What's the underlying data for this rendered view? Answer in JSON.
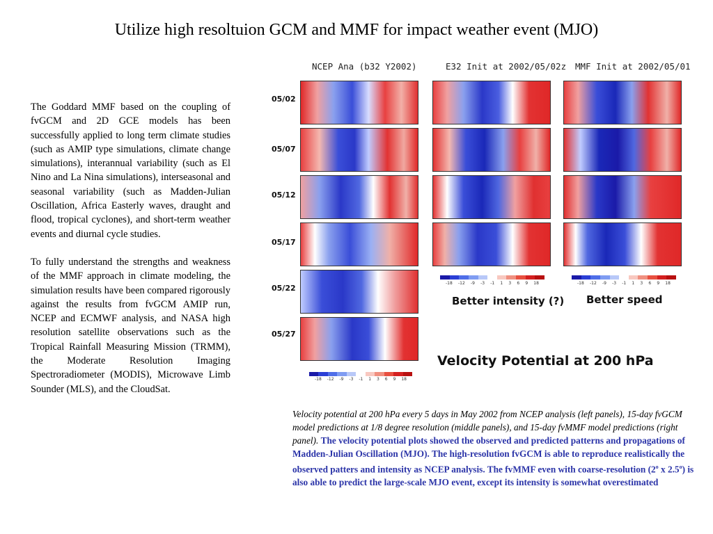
{
  "title": "Utilize high resoltuion GCM and MMF for impact weather event (MJO)",
  "body": {
    "para1": "The Goddard MMF based on the coupling of fvGCM and 2D GCE models has been successfully applied to long term climate studies (such as AMIP type simulations, climate change simulations), interannual variability (such as El Nino and La Nina simulations), interseasonal and seasonal variability (such as Madden-Julian Oscillation, Africa Easterly waves, draught and flood, tropical cyclones), and short-term weather events and diurnal cycle studies.",
    "para2": "To fully understand the strengths and weakness of the MMF approach in climate modeling, the simulation results have been compared rigorously against the results from fvGCM AMIP run, NCEP and ECMWF analysis, and NASA high resolution satellite observations such as the Tropical Rainfall Measuring Mission (TRMM), the Moderate Resolution Imaging Spectroradiometer (MODIS), Microwave Limb Sounder (MLS), and the CloudSat."
  },
  "figure": {
    "columns": [
      "NCEP Ana (b32 Y2002)",
      "E32 Init at 2002/05/02z",
      "MMF Init at 2002/05/01"
    ],
    "dates": [
      "05/02",
      "05/07",
      "05/12",
      "05/17",
      "05/22",
      "05/27"
    ],
    "colorbar_labels": [
      "-18",
      "-12",
      "-9",
      "-3",
      "-1",
      "1",
      "3",
      "6",
      "9",
      "18"
    ],
    "colorbar_colors": [
      "#1a1aa8",
      "#2b3fd6",
      "#4f6ee8",
      "#7f9cf2",
      "#b8c8f8",
      "#ffffff",
      "#f8c8c0",
      "#f09080",
      "#e85040",
      "#d42020",
      "#b81010"
    ],
    "note_middle": "Better intensity (?)",
    "note_right": "Better speed",
    "figure_title": "Velocity Potential at 200 hPa"
  },
  "caption": {
    "italic": "Velocity potential at 200 hPa every 5 days in May 2002 from NCEP analysis (left panels), 15-day fvGCM model predictions at 1/8 degree resolution (middle panels), and 15-day fvMMF model predictions (right panel).",
    "bold_1": "The velocity potential plots showed the observed and predicted patterns and propagations of Madden-Julian Oscillation (MJO). The high-resolution fvGCM is able to reproduce realistically the observed patters and intensity as NCEP analysis. The fvMMF even with coarse-resolution (2",
    "sup_1": "o",
    "bold_2": " x 2.5",
    "sup_2": "o",
    "bold_3": ") is also able to predict the large-scale MJO event, except its intensity is somewhat overestimated"
  }
}
